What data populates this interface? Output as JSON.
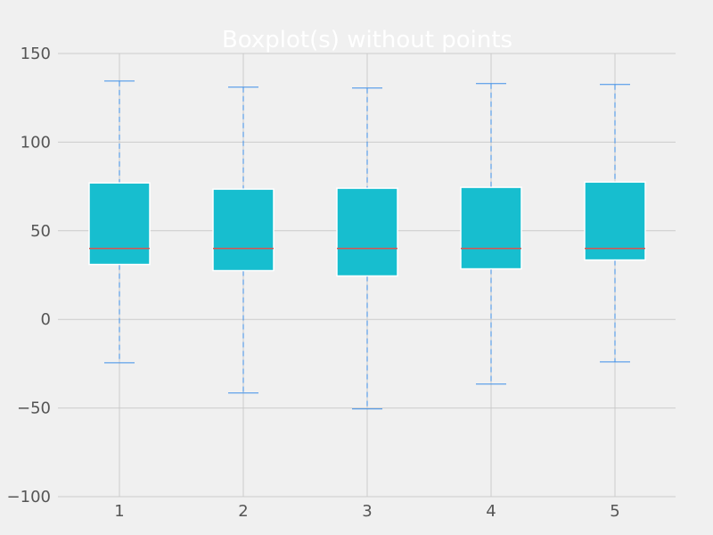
{
  "chart_data": {
    "type": "boxplot",
    "title": "Boxplot(s) without points",
    "xlabel": "",
    "ylabel": "",
    "categories": [
      "1",
      "2",
      "3",
      "4",
      "5"
    ],
    "ylim": [
      -100,
      150
    ],
    "yticks": [
      -100,
      -50,
      0,
      50,
      100,
      150
    ],
    "ytick_labels": [
      "−100",
      "−50",
      "0",
      "50",
      "100",
      "150"
    ],
    "grid": true,
    "boxes": [
      {
        "label": "1",
        "whisker_low": -24.5,
        "q1": 31,
        "median": 40,
        "q3": 77,
        "whisker_high": 134.5
      },
      {
        "label": "2",
        "whisker_low": -41.5,
        "q1": 27.5,
        "median": 40,
        "q3": 73.5,
        "whisker_high": 131
      },
      {
        "label": "3",
        "whisker_low": -50.5,
        "q1": 24.5,
        "median": 40,
        "q3": 74,
        "whisker_high": 130.5
      },
      {
        "label": "4",
        "whisker_low": -36.5,
        "q1": 28.5,
        "median": 40,
        "q3": 74.5,
        "whisker_high": 133
      },
      {
        "label": "5",
        "whisker_low": -24,
        "q1": 33.5,
        "median": 40,
        "q3": 77.5,
        "whisker_high": 132.5
      }
    ],
    "colors": {
      "background": "#f0f0f0",
      "grid": "#cbcbcb",
      "box_fill": "#17becf",
      "box_edge": "#ffffff",
      "whisker": "#3d8ee8",
      "median": "#d9534f",
      "title": "#ffffff",
      "tick_text": "#555555"
    }
  }
}
